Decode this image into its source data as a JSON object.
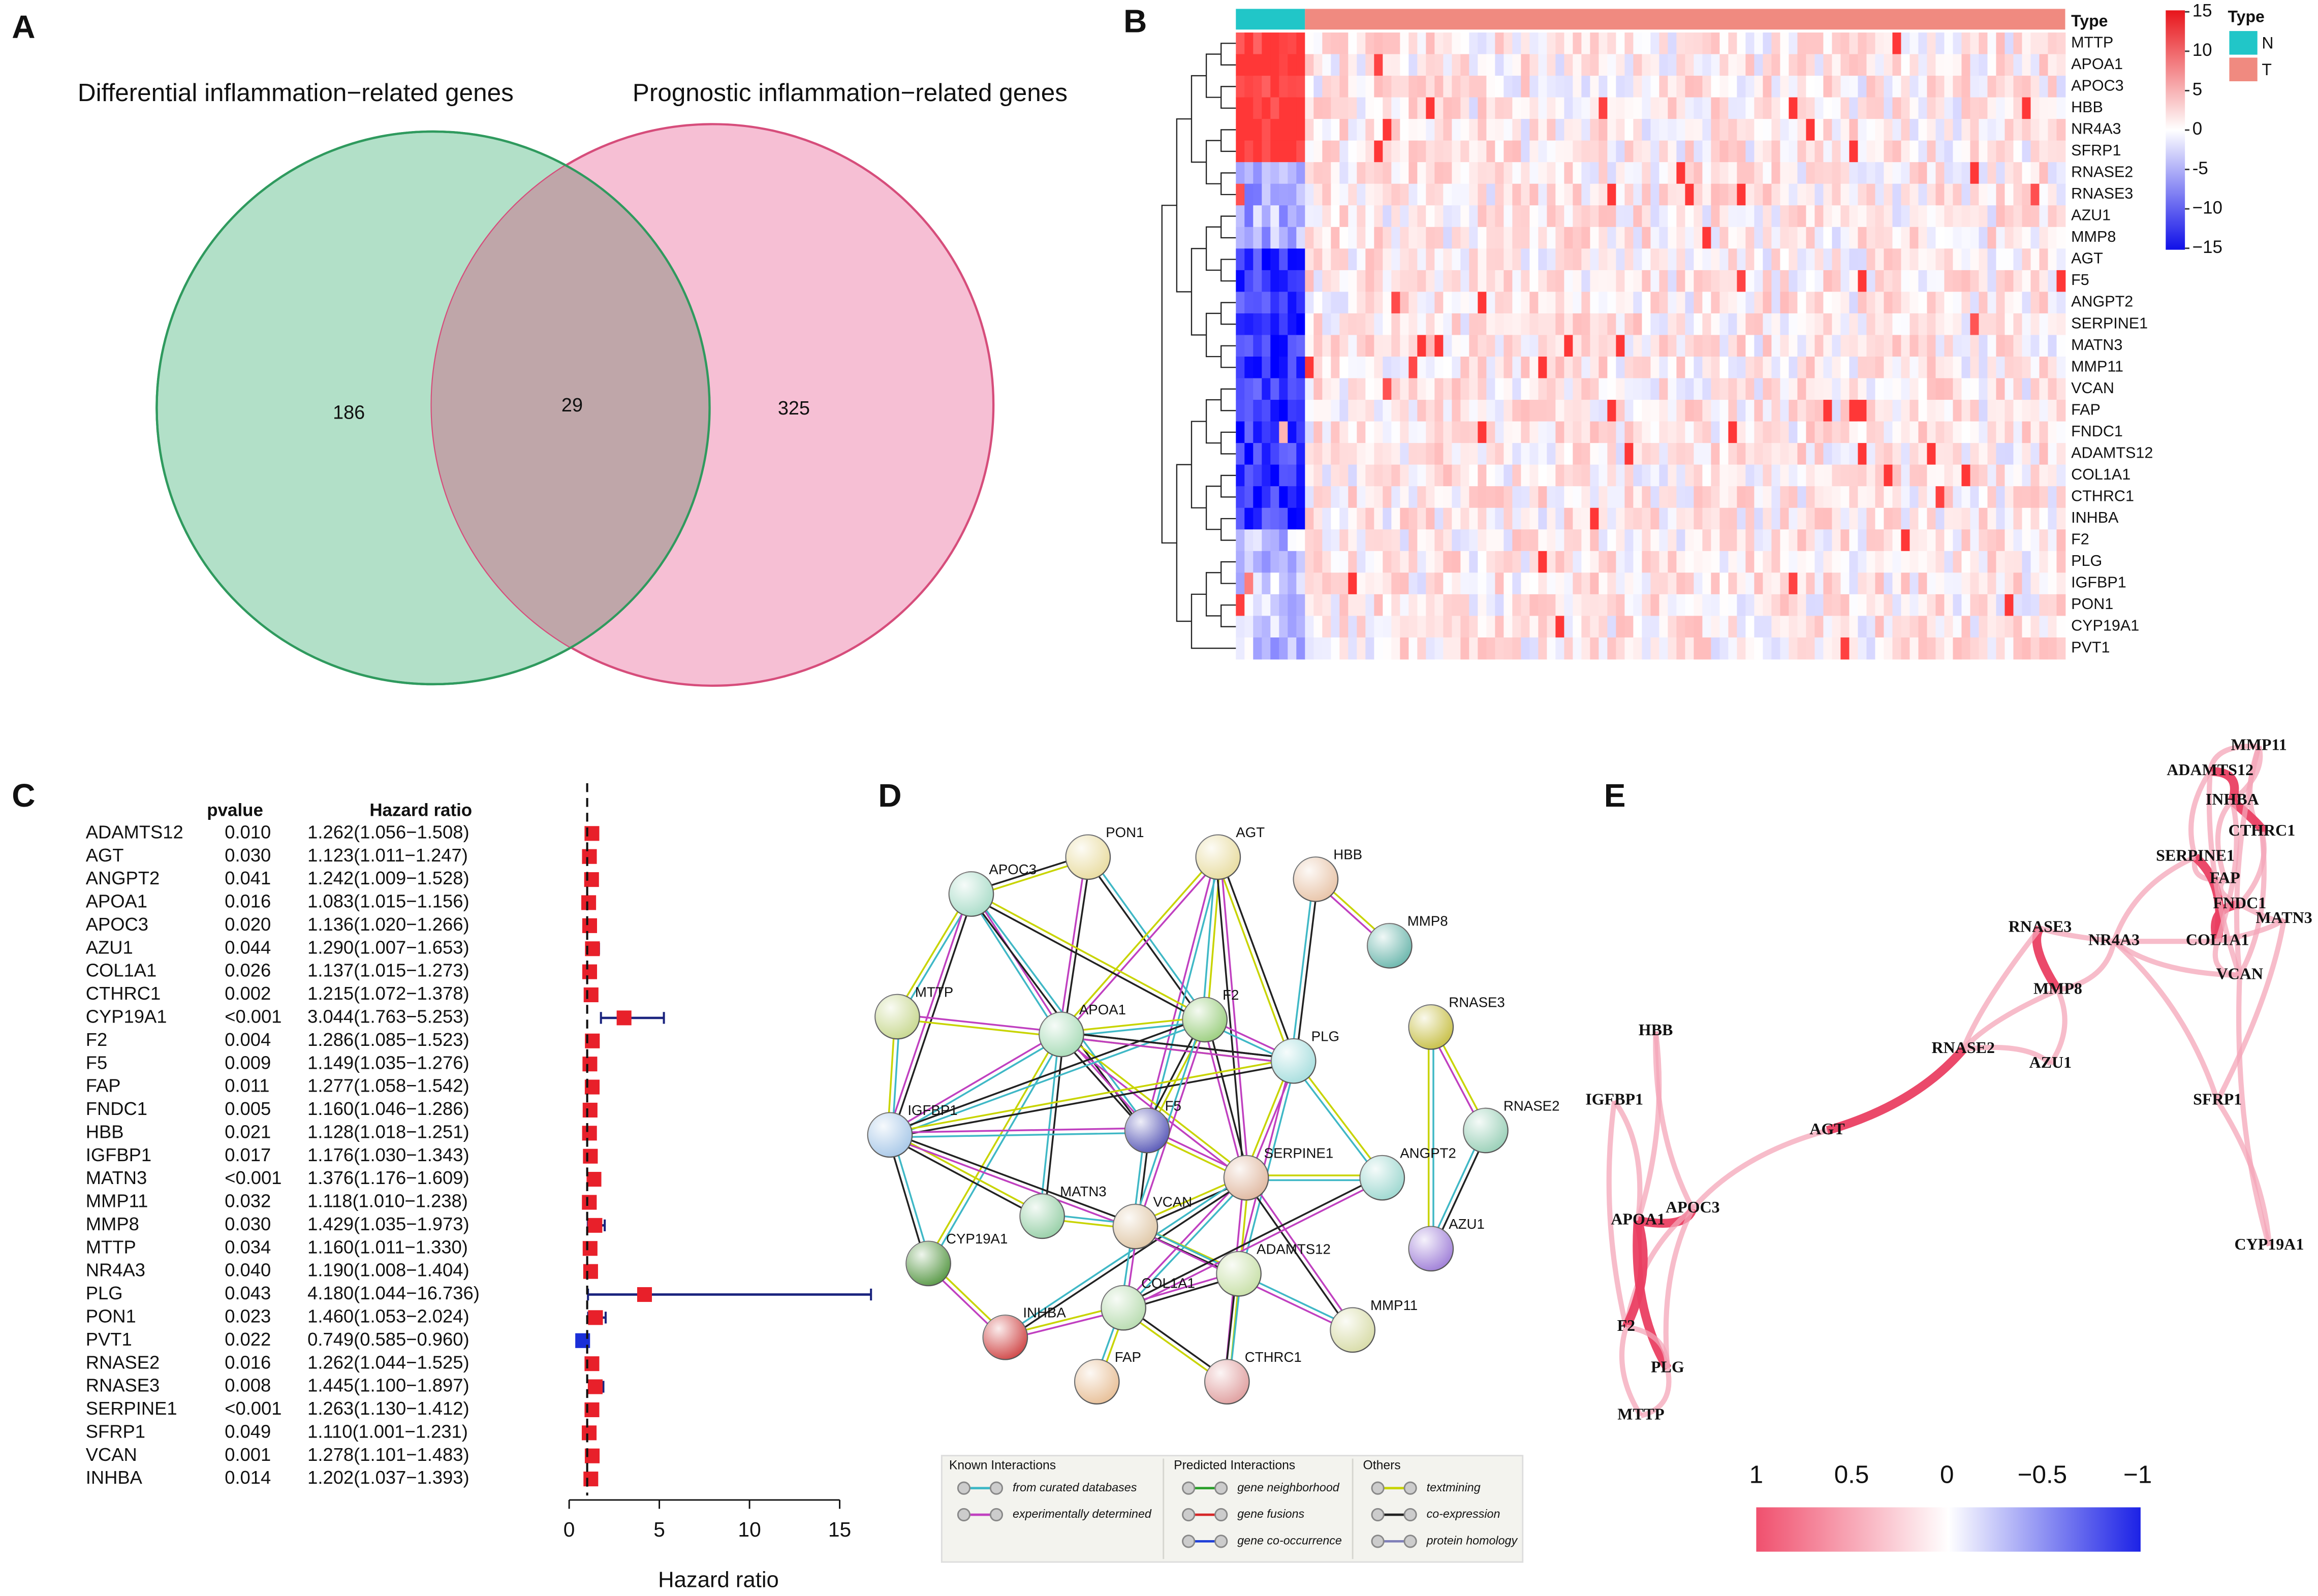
{
  "panels": [
    "A",
    "B",
    "C",
    "D",
    "E"
  ],
  "venn": {
    "left_title": "Differential inflammation−related genes",
    "right_title": "Prognostic inflammation−related genes",
    "left_only": "186",
    "overlap": "29",
    "right_only": "325"
  },
  "heatmap": {
    "genes": [
      "MTTP",
      "APOA1",
      "APOC3",
      "HBB",
      "NR4A3",
      "SFRP1",
      "RNASE2",
      "RNASE3",
      "AZU1",
      "MMP8",
      "AGT",
      "F5",
      "ANGPT2",
      "SERPINE1",
      "MATN3",
      "MMP11",
      "VCAN",
      "FAP",
      "FNDC1",
      "ADAMTS12",
      "COL1A1",
      "CTHRC1",
      "INHBA",
      "F2",
      "PLG",
      "IGFBP1",
      "PON1",
      "CYP19A1",
      "PVT1"
    ],
    "annotation_label": "Type",
    "legend_title": "Type",
    "groups": [
      {
        "name": "N",
        "color": "#21c6c8"
      },
      {
        "name": "T",
        "color": "#f08a80"
      }
    ],
    "scale_ticks": [
      15,
      10,
      5,
      0,
      {
        "value": -5,
        "label": "-5"
      },
      {
        "value": -10,
        "label": "−10"
      },
      {
        "value": -15,
        "label": "−15"
      }
    ],
    "scale_lim": [
      -15,
      15
    ]
  },
  "forest": {
    "header_pvalue": "pvalue",
    "header_hr": "Hazard ratio",
    "x_label": "Hazard ratio",
    "xlim": [
      0,
      15
    ],
    "xticks": [
      0,
      5,
      10,
      15
    ],
    "reference": 1,
    "genes": [
      "ADAMTS12",
      "AGT",
      "ANGPT2",
      "APOA1",
      "APOC3",
      "AZU1",
      "COL1A1",
      "CTHRC1",
      "CYP19A1",
      "F2",
      "F5",
      "FAP",
      "FNDC1",
      "HBB",
      "IGFBP1",
      "MATN3",
      "MMP11",
      "MMP8",
      "MTTP",
      "NR4A3",
      "PLG",
      "PON1",
      "PVT1",
      "RNASE2",
      "RNASE3",
      "SERPINE1",
      "SFRP1",
      "VCAN",
      "INHBA"
    ],
    "pvalues": [
      "0.010",
      "0.030",
      "0.041",
      "0.016",
      "0.020",
      "0.044",
      "0.026",
      "0.002",
      "<0.001",
      "0.004",
      "0.009",
      "0.011",
      "0.005",
      "0.021",
      "0.017",
      "<0.001",
      "0.032",
      "0.030",
      "0.034",
      "0.040",
      "0.043",
      "0.023",
      "0.022",
      "0.016",
      "0.008",
      "<0.001",
      "0.049",
      "0.001",
      "0.014"
    ],
    "hr": [
      1.262,
      1.123,
      1.242,
      1.083,
      1.136,
      1.29,
      1.137,
      1.215,
      3.044,
      1.286,
      1.149,
      1.277,
      1.16,
      1.128,
      1.176,
      1.376,
      1.118,
      1.429,
      1.16,
      1.19,
      4.18,
      1.46,
      0.749,
      1.262,
      1.445,
      1.263,
      1.11,
      1.278,
      1.202
    ],
    "lower": [
      1.056,
      1.011,
      1.009,
      1.015,
      1.02,
      1.007,
      1.015,
      1.072,
      1.763,
      1.085,
      1.035,
      1.058,
      1.046,
      1.018,
      1.03,
      1.176,
      1.01,
      1.035,
      1.011,
      1.008,
      1.044,
      1.053,
      0.585,
      1.044,
      1.1,
      1.13,
      1.001,
      1.101,
      1.037
    ],
    "upper": [
      1.508,
      1.247,
      1.528,
      1.156,
      1.266,
      1.653,
      1.273,
      1.378,
      5.253,
      1.523,
      1.276,
      1.542,
      1.286,
      1.251,
      1.343,
      1.609,
      1.238,
      1.973,
      1.33,
      1.404,
      16.736,
      2.024,
      0.96,
      1.525,
      1.897,
      1.412,
      1.231,
      1.483,
      1.393
    ],
    "hr_labels": [
      "1.262(1.056−1.508)",
      "1.123(1.011−1.247)",
      "1.242(1.009−1.528)",
      "1.083(1.015−1.156)",
      "1.136(1.020−1.266)",
      "1.290(1.007−1.653)",
      "1.137(1.015−1.273)",
      "1.215(1.072−1.378)",
      "3.044(1.763−5.253)",
      "1.286(1.085−1.523)",
      "1.149(1.035−1.276)",
      "1.277(1.058−1.542)",
      "1.160(1.046−1.286)",
      "1.128(1.018−1.251)",
      "1.176(1.030−1.343)",
      "1.376(1.176−1.609)",
      "1.118(1.010−1.238)",
      "1.429(1.035−1.973)",
      "1.160(1.011−1.330)",
      "1.190(1.008−1.404)",
      "4.180(1.044−16.736)",
      "1.460(1.053−2.024)",
      "0.749(0.585−0.960)",
      "1.262(1.044−1.525)",
      "1.445(1.100−1.897)",
      "1.263(1.130−1.412)",
      "1.110(1.001−1.231)",
      "1.278(1.101−1.483)",
      "1.202(1.037−1.393)"
    ]
  },
  "ppi": {
    "nodes": [
      "PON1",
      "AGT",
      "HBB",
      "MMP8",
      "APOC3",
      "MTTP",
      "APOA1",
      "F2",
      "PLG",
      "RNASE3",
      "RNASE2",
      "IGFBP1",
      "F5",
      "SERPINE1",
      "ANGPT2",
      "MATN3",
      "VCAN",
      "AZU1",
      "ADAMTS12",
      "CYP19A1",
      "COL1A1",
      "MMP11",
      "INHBA",
      "FAP",
      "CTHRC1"
    ],
    "legend": {
      "known": "Known Interactions",
      "known_items": [
        "from curated databases",
        "experimentally determined"
      ],
      "predicted": "Predicted Interactions",
      "predicted_items": [
        "gene neighborhood",
        "gene fusions",
        "gene co-occurrence"
      ],
      "others": "Others",
      "others_items": [
        "textmining",
        "co-expression",
        "protein homology"
      ]
    }
  },
  "correlation": {
    "nodes": [
      "MMP11",
      "ADAMTS12",
      "INHBA",
      "CTHRC1",
      "SERPINE1",
      "FAP",
      "FNDC1",
      "MATN3",
      "COL1A1",
      "NR4A3",
      "VCAN",
      "RNASE3",
      "MMP8",
      "AZU1",
      "RNASE2",
      "SFRP1",
      "AGT",
      "HBB",
      "IGFBP1",
      "APOC3",
      "APOA1",
      "F2",
      "PLG",
      "MTTP",
      "CYP19A1"
    ],
    "colorbar_ticks": [
      1,
      0.5,
      0,
      {
        "value": -0.5,
        "label": "−0.5"
      },
      {
        "value": -1,
        "label": "−1"
      }
    ],
    "colorbar_lim": [
      -1,
      1
    ]
  }
}
